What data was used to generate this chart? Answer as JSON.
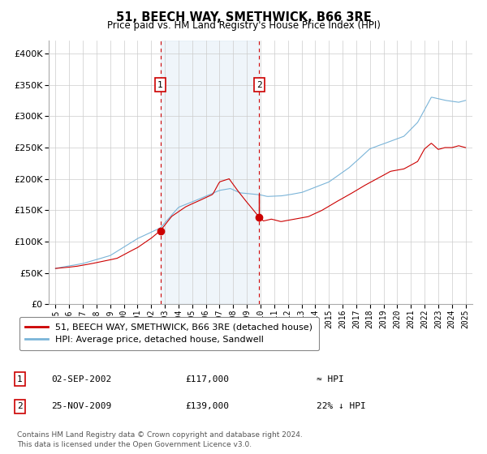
{
  "title": "51, BEECH WAY, SMETHWICK, B66 3RE",
  "subtitle": "Price paid vs. HM Land Registry's House Price Index (HPI)",
  "legend_line1": "51, BEECH WAY, SMETHWICK, B66 3RE (detached house)",
  "legend_line2": "HPI: Average price, detached house, Sandwell",
  "annotation1_date": "02-SEP-2002",
  "annotation1_price": "£117,000",
  "annotation1_hpi": "≈ HPI",
  "annotation2_date": "25-NOV-2009",
  "annotation2_price": "£139,000",
  "annotation2_hpi": "22% ↓ HPI",
  "footnote1": "Contains HM Land Registry data © Crown copyright and database right 2024.",
  "footnote2": "This data is licensed under the Open Government Licence v3.0.",
  "hpi_color": "#7ab4d8",
  "price_color": "#cc0000",
  "marker_color": "#cc0000",
  "vline_color": "#cc0000",
  "shade_color": "#cce0f0",
  "background_color": "#ffffff",
  "grid_color": "#cccccc",
  "sale1_x": 2002.67,
  "sale1_y": 117000,
  "sale2_x": 2009.9,
  "sale2_y": 139000,
  "xlim_left": 1994.5,
  "xlim_right": 2025.5,
  "ylim_bottom": 0,
  "ylim_top": 420000,
  "yticks": [
    0,
    50000,
    100000,
    150000,
    200000,
    250000,
    300000,
    350000,
    400000
  ],
  "xticks": [
    1995,
    1996,
    1997,
    1998,
    1999,
    2000,
    2001,
    2002,
    2003,
    2004,
    2005,
    2006,
    2007,
    2008,
    2009,
    2010,
    2011,
    2012,
    2013,
    2014,
    2015,
    2016,
    2017,
    2018,
    2019,
    2020,
    2021,
    2022,
    2023,
    2024,
    2025
  ]
}
